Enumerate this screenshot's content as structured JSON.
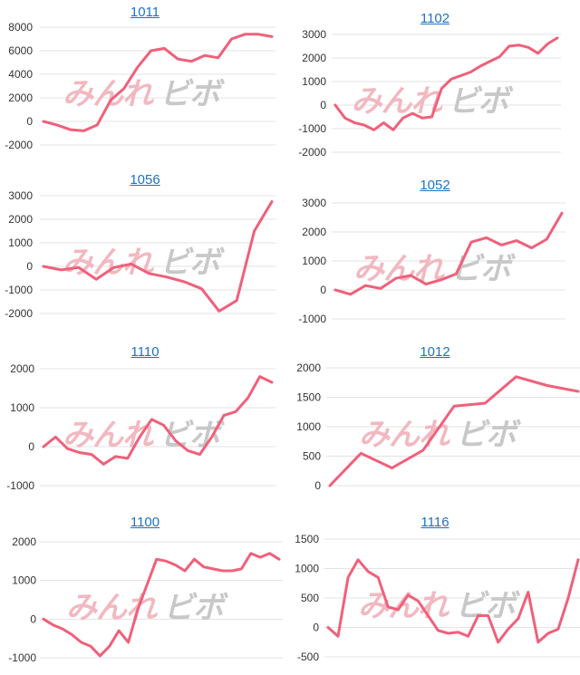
{
  "colors": {
    "line": "#f0607a",
    "title": "#1a73c8",
    "grid": "#e3e3e3",
    "tick": "#333333",
    "watermark_left": "#f2b8c0",
    "watermark_right": "#c8c8c8"
  },
  "watermark": {
    "left": "みんれ",
    "right": "ビボ"
  },
  "chart_data": [
    {
      "type": "line",
      "title": "1011",
      "ylim": [
        -2000,
        8000
      ],
      "yticks": [
        8000,
        6000,
        4000,
        2000,
        0,
        -2000
      ],
      "values": [
        0,
        -300,
        -700,
        -800,
        -300,
        1800,
        2800,
        4600,
        6000,
        6200,
        5300,
        5100,
        5600,
        5400,
        7000,
        7400,
        7400,
        7200
      ],
      "grid": true
    },
    {
      "type": "line",
      "title": "1102",
      "ylim": [
        -2000,
        3000
      ],
      "yticks": [
        3000,
        2000,
        1000,
        0,
        -1000,
        -2000
      ],
      "values": [
        0,
        -550,
        -750,
        -850,
        -1050,
        -750,
        -1050,
        -550,
        -350,
        -550,
        -500,
        700,
        1100,
        1250,
        1400,
        1650,
        1850,
        2050,
        2500,
        2550,
        2450,
        2200,
        2600,
        2850
      ],
      "grid": true
    },
    {
      "type": "line",
      "title": "1056",
      "ylim": [
        -2000,
        3000
      ],
      "yticks": [
        3000,
        2000,
        1000,
        0,
        -1000,
        -2000
      ],
      "values": [
        0,
        -150,
        -50,
        -550,
        -50,
        100,
        -300,
        -450,
        -650,
        -950,
        -1900,
        -1450,
        1500,
        2750
      ],
      "grid": true
    },
    {
      "type": "line",
      "title": "1052",
      "ylim": [
        -1000,
        3000
      ],
      "yticks": [
        3000,
        2000,
        1000,
        0,
        -1000
      ],
      "values": [
        0,
        -150,
        150,
        50,
        400,
        500,
        200,
        350,
        550,
        1650,
        1800,
        1550,
        1700,
        1450,
        1750,
        2650
      ],
      "grid": true
    },
    {
      "type": "line",
      "title": "1110",
      "ylim": [
        -1000,
        2000
      ],
      "yticks": [
        2000,
        1000,
        0,
        -1000
      ],
      "values": [
        0,
        250,
        -50,
        -150,
        -200,
        -450,
        -250,
        -300,
        250,
        700,
        550,
        150,
        -100,
        -200,
        250,
        800,
        900,
        1250,
        1800,
        1650
      ],
      "grid": true
    },
    {
      "type": "line",
      "title": "1012",
      "ylim": [
        0,
        2000
      ],
      "yticks": [
        2000,
        1500,
        1000,
        500,
        0
      ],
      "values": [
        0,
        550,
        300,
        600,
        1350,
        1400,
        1850,
        1700,
        1600
      ],
      "grid": true
    },
    {
      "type": "line",
      "title": "1100",
      "ylim": [
        -1000,
        2000
      ],
      "yticks": [
        2000,
        1000,
        0,
        -1000
      ],
      "values": [
        0,
        -150,
        -250,
        -400,
        -600,
        -700,
        -950,
        -700,
        -300,
        -600,
        250,
        900,
        1550,
        1500,
        1400,
        1250,
        1550,
        1350,
        1300,
        1250,
        1250,
        1300,
        1700,
        1600,
        1700,
        1550
      ],
      "grid": true
    },
    {
      "type": "line",
      "title": "1116",
      "ylim": [
        -500,
        1500
      ],
      "yticks": [
        1500,
        1000,
        500,
        0,
        -500
      ],
      "values": [
        0,
        -150,
        850,
        1150,
        950,
        850,
        350,
        300,
        550,
        450,
        200,
        -50,
        -100,
        -80,
        -150,
        200,
        200,
        -250,
        -30,
        150,
        600,
        -250,
        -100,
        -30,
        500,
        1150
      ],
      "grid": true
    }
  ]
}
